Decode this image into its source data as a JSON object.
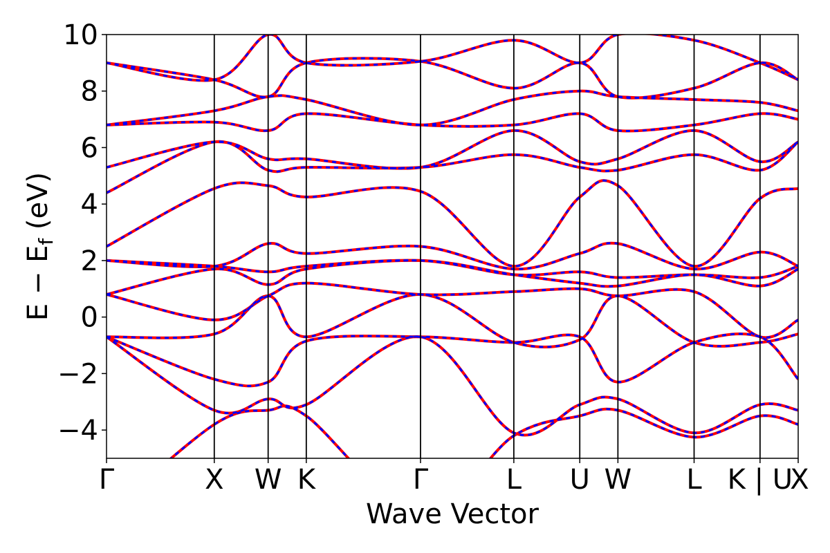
{
  "chart_data": {
    "type": "line",
    "xlabel": "Wave Vector",
    "ylabel": "E − E",
    "ylabel_sub": "f",
    "ylabel_unit": " (eV)",
    "ylim": [
      -5,
      10
    ],
    "y_ticks": [
      -4,
      -2,
      0,
      2,
      4,
      6,
      8,
      10
    ],
    "y_tick_labels": [
      "−4",
      "−2",
      "0",
      "2",
      "4",
      "6",
      "8",
      "10"
    ],
    "k_points": [
      {
        "label": "Γ",
        "x": 0.0
      },
      {
        "label": "X",
        "x": 1.0
      },
      {
        "label": "W",
        "x": 1.5
      },
      {
        "label": "K",
        "x": 1.854
      },
      {
        "label": "Γ",
        "x": 2.914
      },
      {
        "label": "L",
        "x": 3.78
      },
      {
        "label": "U",
        "x": 4.392
      },
      {
        "label": "W",
        "x": 4.746
      },
      {
        "label": "L",
        "x": 5.453
      },
      {
        "label": "K | U",
        "x": 6.065
      },
      {
        "label": "X",
        "x": 6.419
      }
    ],
    "grid": false,
    "series": [
      {
        "color": "#ff0000",
        "style": "solid",
        "bands": [
          [
            [
              0,
              -7.0
            ],
            [
              1,
              -3.8
            ],
            [
              1.5,
              -3.3
            ],
            [
              1.854,
              -3.5
            ],
            [
              2.914,
              -7.0
            ],
            [
              3.78,
              -4.2
            ],
            [
              4.392,
              -3.5
            ],
            [
              4.746,
              -3.3
            ],
            [
              5.453,
              -4.25
            ],
            [
              6.065,
              -3.5
            ],
            [
              6.419,
              -3.8
            ]
          ],
          [
            [
              0,
              -0.7
            ],
            [
              1,
              -3.3
            ],
            [
              1.5,
              -2.9
            ],
            [
              1.854,
              -3.1
            ],
            [
              2.914,
              -0.7
            ],
            [
              3.78,
              -4.1
            ],
            [
              4.392,
              -3.1
            ],
            [
              4.746,
              -2.9
            ],
            [
              5.453,
              -4.1
            ],
            [
              6.065,
              -3.1
            ],
            [
              6.419,
              -3.3
            ]
          ],
          [
            [
              0,
              -0.7
            ],
            [
              1,
              -2.2
            ],
            [
              1.5,
              -2.3
            ],
            [
              1.854,
              -0.85
            ],
            [
              2.914,
              -0.7
            ],
            [
              3.78,
              -0.9
            ],
            [
              4.392,
              -0.7
            ],
            [
              4.746,
              -2.3
            ],
            [
              5.453,
              -0.9
            ],
            [
              6.065,
              -0.7
            ],
            [
              6.419,
              -2.2
            ]
          ],
          [
            [
              0,
              -0.7
            ],
            [
              1,
              -0.6
            ],
            [
              1.5,
              0.75
            ],
            [
              1.854,
              -0.7
            ],
            [
              2.914,
              0.8
            ],
            [
              3.78,
              -0.9
            ],
            [
              4.392,
              -0.8
            ],
            [
              4.746,
              0.75
            ],
            [
              5.453,
              -0.9
            ],
            [
              6.065,
              -0.9
            ],
            [
              6.419,
              -0.6
            ]
          ],
          [
            [
              0,
              0.8
            ],
            [
              1,
              -0.1
            ],
            [
              1.5,
              0.75
            ],
            [
              1.854,
              1.2
            ],
            [
              2.914,
              0.8
            ],
            [
              3.78,
              0.9
            ],
            [
              4.392,
              1.0
            ],
            [
              4.746,
              0.75
            ],
            [
              5.453,
              0.9
            ],
            [
              6.065,
              -0.7
            ],
            [
              6.419,
              -0.1
            ]
          ],
          [
            [
              0,
              0.8
            ],
            [
              1,
              1.7
            ],
            [
              1.5,
              1.15
            ],
            [
              1.854,
              1.7
            ],
            [
              2.914,
              2.0
            ],
            [
              3.78,
              1.5
            ],
            [
              4.392,
              1.2
            ],
            [
              4.746,
              1.1
            ],
            [
              5.453,
              1.5
            ],
            [
              6.065,
              1.1
            ],
            [
              6.419,
              1.7
            ]
          ],
          [
            [
              0,
              2.0
            ],
            [
              1,
              1.8
            ],
            [
              1.5,
              1.6
            ],
            [
              1.854,
              1.8
            ],
            [
              2.914,
              2.0
            ],
            [
              3.78,
              1.5
            ],
            [
              4.392,
              1.6
            ],
            [
              4.746,
              1.4
            ],
            [
              5.453,
              1.5
            ],
            [
              6.065,
              1.4
            ],
            [
              6.419,
              1.8
            ]
          ],
          [
            [
              0,
              2.0
            ],
            [
              1,
              1.8
            ],
            [
              1.5,
              2.6
            ],
            [
              1.854,
              2.25
            ],
            [
              2.914,
              2.5
            ],
            [
              3.78,
              1.7
            ],
            [
              4.392,
              2.25
            ],
            [
              4.746,
              2.6
            ],
            [
              5.453,
              1.7
            ],
            [
              6.065,
              2.3
            ],
            [
              6.419,
              1.8
            ]
          ],
          [
            [
              0,
              2.5
            ],
            [
              1,
              4.55
            ],
            [
              1.5,
              4.65
            ],
            [
              1.854,
              4.25
            ],
            [
              2.914,
              4.45
            ],
            [
              3.78,
              1.8
            ],
            [
              4.392,
              4.25
            ],
            [
              4.746,
              4.65
            ],
            [
              5.453,
              1.8
            ],
            [
              6.065,
              4.2
            ],
            [
              6.419,
              4.55
            ]
          ],
          [
            [
              0,
              4.4
            ],
            [
              1,
              6.2
            ],
            [
              1.5,
              5.2
            ],
            [
              1.854,
              5.3
            ],
            [
              2.914,
              5.3
            ],
            [
              3.78,
              5.75
            ],
            [
              4.392,
              5.3
            ],
            [
              4.746,
              5.2
            ],
            [
              5.453,
              5.75
            ],
            [
              6.065,
              5.2
            ],
            [
              6.419,
              6.2
            ]
          ],
          [
            [
              0,
              5.3
            ],
            [
              1,
              6.2
            ],
            [
              1.5,
              5.6
            ],
            [
              1.854,
              5.6
            ],
            [
              2.914,
              5.3
            ],
            [
              3.78,
              6.6
            ],
            [
              4.392,
              5.5
            ],
            [
              4.746,
              5.6
            ],
            [
              5.453,
              6.6
            ],
            [
              6.065,
              5.5
            ],
            [
              6.419,
              6.2
            ]
          ],
          [
            [
              0,
              6.8
            ],
            [
              1,
              6.9
            ],
            [
              1.5,
              6.6
            ],
            [
              1.854,
              7.2
            ],
            [
              2.914,
              6.8
            ],
            [
              3.78,
              6.8
            ],
            [
              4.392,
              7.2
            ],
            [
              4.746,
              6.6
            ],
            [
              5.453,
              6.8
            ],
            [
              6.065,
              7.2
            ],
            [
              6.419,
              7.0
            ]
          ],
          [
            [
              0,
              6.8
            ],
            [
              1,
              7.3
            ],
            [
              1.5,
              7.8
            ],
            [
              1.854,
              7.7
            ],
            [
              2.914,
              6.8
            ],
            [
              3.78,
              7.7
            ],
            [
              4.392,
              8.0
            ],
            [
              4.746,
              7.8
            ],
            [
              5.453,
              7.7
            ],
            [
              6.065,
              7.6
            ],
            [
              6.419,
              7.3
            ]
          ],
          [
            [
              0,
              9.0
            ],
            [
              1,
              8.4
            ],
            [
              1.5,
              7.8
            ],
            [
              1.854,
              9.0
            ],
            [
              2.914,
              9.05
            ],
            [
              3.78,
              8.1
            ],
            [
              4.392,
              9.0
            ],
            [
              4.746,
              7.8
            ],
            [
              5.453,
              8.1
            ],
            [
              6.065,
              9.0
            ],
            [
              6.419,
              8.4
            ]
          ],
          [
            [
              0,
              9.0
            ],
            [
              1,
              8.4
            ],
            [
              1.5,
              10.0
            ],
            [
              1.854,
              9.0
            ],
            [
              2.914,
              9.05
            ],
            [
              3.78,
              9.8
            ],
            [
              4.392,
              9.0
            ],
            [
              4.746,
              10.0
            ],
            [
              5.453,
              9.8
            ],
            [
              6.065,
              9.0
            ],
            [
              6.419,
              8.4
            ]
          ]
        ]
      },
      {
        "color": "#0000ff",
        "style": "dashed",
        "bands": "same_as_previous"
      }
    ]
  }
}
